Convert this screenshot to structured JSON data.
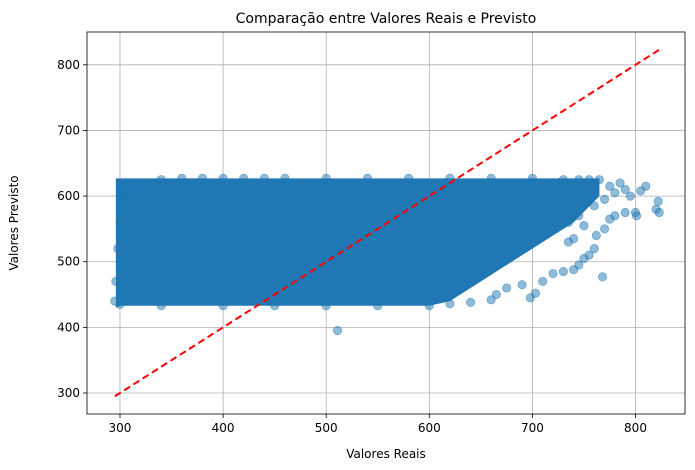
{
  "chart_data": {
    "type": "scatter",
    "title": "Comparação entre Valores Reais e Previsto",
    "xlabel": "Valores Reais",
    "ylabel": "Valores Previsto",
    "xlim": [
      268,
      848
    ],
    "ylim": [
      268,
      850
    ],
    "xticks": [
      300,
      400,
      500,
      600,
      700,
      800
    ],
    "yticks": [
      300,
      400,
      500,
      600,
      700,
      800
    ],
    "grid": true,
    "series": [
      {
        "kind": "points",
        "color": "#1f77b4",
        "alpha": 0.5,
        "points": [
          [
            295,
            440
          ],
          [
            296,
            470
          ],
          [
            298,
            520
          ],
          [
            300,
            560
          ],
          [
            303,
            600
          ],
          [
            306,
            610
          ],
          [
            310,
            620
          ],
          [
            320,
            615
          ],
          [
            325,
            610
          ],
          [
            340,
            625
          ],
          [
            360,
            627
          ],
          [
            380,
            627
          ],
          [
            400,
            627
          ],
          [
            420,
            627
          ],
          [
            440,
            627
          ],
          [
            460,
            627
          ],
          [
            500,
            627
          ],
          [
            540,
            627
          ],
          [
            580,
            627
          ],
          [
            620,
            627
          ],
          [
            660,
            627
          ],
          [
            700,
            627
          ],
          [
            730,
            625
          ],
          [
            745,
            625
          ],
          [
            755,
            625
          ],
          [
            765,
            625
          ],
          [
            300,
            435
          ],
          [
            340,
            433
          ],
          [
            400,
            433
          ],
          [
            450,
            433
          ],
          [
            500,
            433
          ],
          [
            550,
            433
          ],
          [
            600,
            433
          ],
          [
            620,
            436
          ],
          [
            640,
            438
          ],
          [
            660,
            442
          ],
          [
            665,
            450
          ],
          [
            675,
            460
          ],
          [
            690,
            465
          ],
          [
            698,
            445
          ],
          [
            703,
            452
          ],
          [
            710,
            470
          ],
          [
            720,
            482
          ],
          [
            730,
            485
          ],
          [
            740,
            488
          ],
          [
            745,
            495
          ],
          [
            750,
            505
          ],
          [
            755,
            510
          ],
          [
            760,
            520
          ],
          [
            768,
            477
          ],
          [
            762,
            540
          ],
          [
            770,
            550
          ],
          [
            775,
            565
          ],
          [
            780,
            570
          ],
          [
            790,
            575
          ],
          [
            795,
            600
          ],
          [
            800,
            575
          ],
          [
            801,
            570
          ],
          [
            805,
            608
          ],
          [
            810,
            615
          ],
          [
            820,
            580
          ],
          [
            822,
            592
          ],
          [
            823,
            575
          ],
          [
            511,
            395
          ],
          [
            740,
            535
          ],
          [
            735,
            530
          ],
          [
            750,
            555
          ],
          [
            760,
            585
          ],
          [
            770,
            595
          ],
          [
            780,
            605
          ],
          [
            775,
            615
          ],
          [
            785,
            620
          ],
          [
            790,
            610
          ],
          [
            745,
            570
          ],
          [
            735,
            560
          ]
        ]
      },
      {
        "kind": "reference_line",
        "color": "#ff0000",
        "style": "dashed",
        "x": [
          295,
          823
        ],
        "y": [
          295,
          823
        ]
      }
    ]
  }
}
